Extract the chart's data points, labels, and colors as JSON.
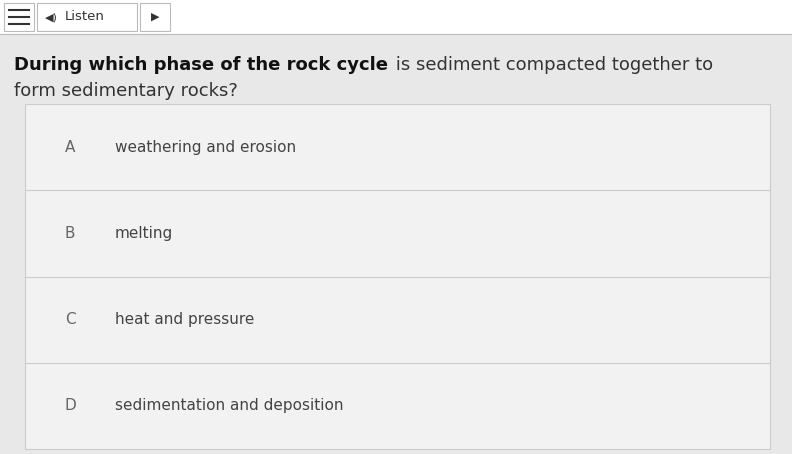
{
  "background_color": "#e8e8e8",
  "top_bar_color": "#ffffff",
  "top_bar_border": "#bbbbbb",
  "listen_text": "Listen",
  "question_bold": "During which phase of the rock cycle",
  "question_normal_1": " is sediment compacted together to",
  "question_normal_2": "form sedimentary rocks?",
  "options": [
    {
      "letter": "A",
      "text": "weathering and erosion"
    },
    {
      "letter": "B",
      "text": "melting"
    },
    {
      "letter": "C",
      "text": "heat and pressure"
    },
    {
      "letter": "D",
      "text": "sedimentation and deposition"
    }
  ],
  "options_box_bg": "#f2f2f2",
  "options_box_border": "#cccccc",
  "divider_color": "#cccccc",
  "letter_color": "#666666",
  "option_text_color": "#444444",
  "question_bold_color": "#111111",
  "question_normal_color": "#333333",
  "fig_width": 7.92,
  "fig_height": 4.54,
  "dpi": 100
}
